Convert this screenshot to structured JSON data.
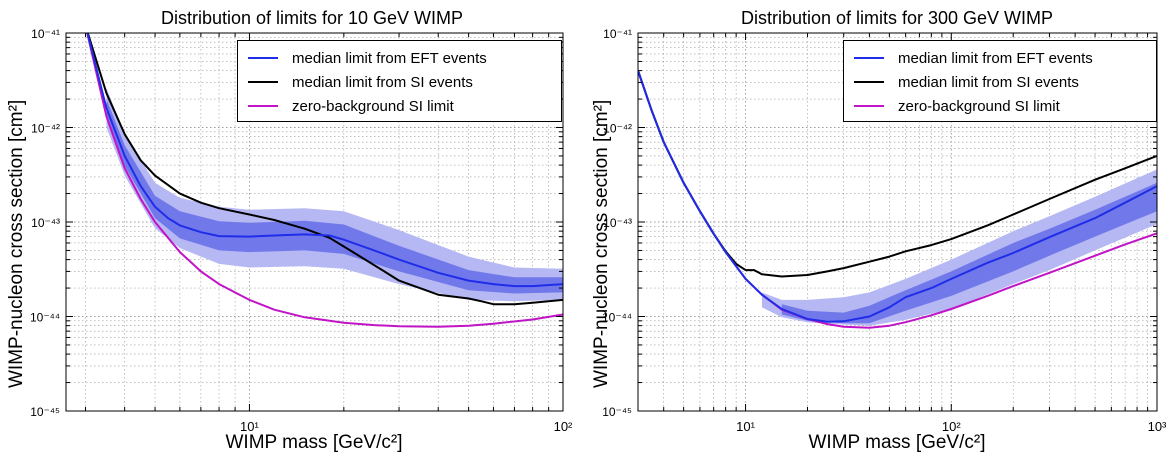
{
  "colors": {
    "eft": "#1f2de8",
    "si": "#000000",
    "zero_bg": "#c014c6",
    "band_outer": "#b6b8f3",
    "band_inner": "#7179ea",
    "grid": "#9a9a9a"
  },
  "chart_data": [
    {
      "type": "line",
      "title": "Distribution of limits for 10 GeV WIMP",
      "xlabel": "WIMP mass [GeV/c²]",
      "ylabel": "WIMP-nucleon cross section [cm²]",
      "xscale": "log",
      "yscale": "log",
      "xlim": [
        2.6,
        100
      ],
      "ylim": [
        1e-45,
        1e-41
      ],
      "xticks": [
        {
          "value": 10,
          "label": "10¹"
        },
        {
          "value": 100,
          "label": "10²"
        }
      ],
      "yticks": [
        {
          "value": 1e-45,
          "label": "10⁻⁴⁵"
        },
        {
          "value": 1e-44,
          "label": "10⁻⁴⁴"
        },
        {
          "value": 1e-43,
          "label": "10⁻⁴³"
        },
        {
          "value": 1e-42,
          "label": "10⁻⁴²"
        },
        {
          "value": 1e-41,
          "label": "10⁻⁴¹"
        }
      ],
      "grid": true,
      "legend_position": "top-right",
      "series": [
        {
          "name": "median limit from EFT events",
          "color_key": "eft",
          "x": [
            3.0,
            3.5,
            4.0,
            4.5,
            5.0,
            5.5,
            6.0,
            7.0,
            8.0,
            10,
            12,
            15,
            18,
            20,
            25,
            30,
            40,
            50,
            60,
            70,
            80,
            100
          ],
          "y": [
            1.2e-41,
            1.6e-42,
            5e-43,
            2.4e-43,
            1.45e-43,
            1.1e-43,
            9.2e-44,
            7.8e-44,
            7.1e-44,
            7e-44,
            7.2e-44,
            7.4e-44,
            7.2e-44,
            6.5e-44,
            5e-44,
            4e-44,
            2.9e-44,
            2.4e-44,
            2.2e-44,
            2.1e-44,
            2.1e-44,
            2.2e-44
          ]
        },
        {
          "name": "median limit from SI events",
          "color_key": "si",
          "x": [
            3.0,
            3.5,
            4.0,
            4.5,
            5.0,
            6.0,
            7.0,
            8.0,
            10,
            12,
            15,
            18,
            20,
            25,
            30,
            40,
            50,
            55,
            60,
            70,
            80,
            100
          ],
          "y": [
            1.2e-41,
            2.3e-42,
            8.5e-43,
            4.5e-43,
            3.1e-43,
            2e-43,
            1.6e-43,
            1.4e-43,
            1.2e-43,
            1.05e-43,
            8.5e-44,
            6.8e-44,
            5.5e-44,
            3.5e-44,
            2.4e-44,
            1.7e-44,
            1.55e-44,
            1.45e-44,
            1.35e-44,
            1.35e-44,
            1.4e-44,
            1.5e-44
          ]
        },
        {
          "name": "zero-background SI limit",
          "color_key": "zero_bg",
          "x": [
            3.0,
            3.5,
            4.0,
            4.5,
            5.0,
            6.0,
            7.0,
            8.0,
            10,
            12,
            15,
            20,
            25,
            30,
            40,
            50,
            60,
            80,
            100
          ],
          "y": [
            1.2e-41,
            1.3e-42,
            3.7e-43,
            1.75e-43,
            1e-43,
            4.8e-44,
            3e-44,
            2.2e-44,
            1.5e-44,
            1.18e-44,
            9.8e-45,
            8.6e-45,
            8.1e-45,
            7.9e-45,
            7.8e-45,
            8e-45,
            8.4e-45,
            9.3e-45,
            1.05e-44
          ]
        }
      ],
      "bands": [
        {
          "level": "outer",
          "color_key": "band_outer",
          "x": [
            3.5,
            4.0,
            5.0,
            6.0,
            8.0,
            10,
            15,
            20,
            30,
            50,
            70,
            100
          ],
          "low": [
            1e-42,
            3.1e-43,
            8.6e-44,
            5.3e-44,
            3.6e-44,
            3.3e-44,
            3.4e-44,
            3.2e-44,
            2.2e-44,
            1.5e-44,
            1.45e-44,
            1.5e-44
          ],
          "high": [
            2.6e-42,
            8.5e-43,
            2.6e-43,
            1.8e-43,
            1.45e-43,
            1.35e-43,
            1.4e-43,
            1.3e-43,
            8.2e-44,
            4.3e-44,
            3.3e-44,
            3.2e-44
          ]
        },
        {
          "level": "inner",
          "color_key": "band_inner",
          "x": [
            3.5,
            4.0,
            5.0,
            6.0,
            8.0,
            10,
            15,
            20,
            30,
            50,
            70,
            100
          ],
          "low": [
            1.3e-42,
            3.9e-43,
            1.1e-43,
            6.7e-44,
            5e-44,
            4.8e-44,
            5e-44,
            4.6e-44,
            3e-44,
            1.9e-44,
            1.75e-44,
            1.8e-44
          ],
          "high": [
            2e-42,
            6.5e-43,
            1.9e-43,
            1.3e-43,
            1.02e-43,
            9.8e-44,
            1.03e-43,
            9.4e-44,
            5.6e-44,
            3.1e-44,
            2.6e-44,
            2.6e-44
          ]
        }
      ]
    },
    {
      "type": "line",
      "title": "Distribution of limits for 300 GeV WIMP",
      "xlabel": "WIMP mass [GeV/c²]",
      "ylabel": "WIMP-nucleon cross section [cm²]",
      "xscale": "log",
      "yscale": "log",
      "xlim": [
        3,
        1000
      ],
      "ylim": [
        1e-45,
        1e-41
      ],
      "xticks": [
        {
          "value": 10,
          "label": "10¹"
        },
        {
          "value": 100,
          "label": "10²"
        },
        {
          "value": 1000,
          "label": "10³"
        }
      ],
      "yticks": [
        {
          "value": 1e-45,
          "label": "10⁻⁴⁵"
        },
        {
          "value": 1e-44,
          "label": "10⁻⁴⁴"
        },
        {
          "value": 1e-43,
          "label": "10⁻⁴³"
        },
        {
          "value": 1e-42,
          "label": "10⁻⁴²"
        },
        {
          "value": 1e-41,
          "label": "10⁻⁴¹"
        }
      ],
      "grid": true,
      "legend_position": "top-right",
      "series": [
        {
          "name": "median limit from EFT events",
          "color_key": "eft",
          "x": [
            3,
            3.5,
            4,
            5,
            6,
            7,
            8,
            10,
            12,
            15,
            20,
            25,
            30,
            40,
            50,
            60,
            80,
            100,
            150,
            200,
            300,
            500,
            700,
            1000
          ],
          "y": [
            4e-42,
            1.5e-42,
            7e-43,
            2.6e-43,
            1.3e-43,
            7.5e-44,
            4.8e-44,
            2.5e-44,
            1.7e-44,
            1.2e-44,
            9.4e-45,
            8.8e-45,
            8.9e-45,
            1e-44,
            1.25e-44,
            1.6e-44,
            2e-44,
            2.5e-44,
            3.7e-44,
            4.7e-44,
            6.9e-44,
            1.1e-43,
            1.6e-43,
            2.4e-43
          ]
        },
        {
          "name": "median limit from SI events",
          "color_key": "si",
          "x": [
            3,
            3.5,
            4,
            5,
            6,
            7,
            8,
            9,
            10,
            11,
            12,
            15,
            20,
            25,
            30,
            40,
            50,
            60,
            80,
            100,
            150,
            200,
            300,
            500,
            700,
            1000
          ],
          "y": [
            4e-42,
            1.5e-42,
            7e-43,
            2.6e-43,
            1.3e-43,
            7.5e-44,
            4.9e-44,
            3.6e-44,
            3.1e-44,
            3.1e-44,
            2.8e-44,
            2.65e-44,
            2.75e-44,
            3e-44,
            3.25e-44,
            3.8e-44,
            4.3e-44,
            4.9e-44,
            5.7e-44,
            6.6e-44,
            9.2e-44,
            1.2e-43,
            1.75e-43,
            2.8e-43,
            3.7e-43,
            5e-43
          ]
        },
        {
          "name": "zero-background SI limit",
          "color_key": "zero_bg",
          "x": [
            3,
            3.5,
            4,
            5,
            6,
            7,
            8,
            10,
            12,
            15,
            20,
            25,
            30,
            40,
            50,
            60,
            80,
            100,
            150,
            200,
            300,
            500,
            700,
            1000
          ],
          "y": [
            4e-42,
            1.5e-42,
            7e-43,
            2.6e-43,
            1.3e-43,
            7.5e-44,
            4.8e-44,
            2.5e-44,
            1.7e-44,
            1.18e-44,
            9.4e-45,
            8.3e-45,
            7.8e-45,
            7.6e-45,
            8e-45,
            8.7e-45,
            1.03e-44,
            1.2e-44,
            1.65e-44,
            2.1e-44,
            2.9e-44,
            4.4e-44,
            5.8e-44,
            7.6e-44
          ]
        }
      ],
      "bands": [
        {
          "level": "outer",
          "color_key": "band_outer",
          "x": [
            12,
            15,
            20,
            30,
            40,
            60,
            100,
            200,
            300,
            500,
            1000
          ],
          "low": [
            1.25e-44,
            9.8e-45,
            8.7e-45,
            8.2e-45,
            8e-45,
            9.2e-45,
            1.2e-44,
            2.2e-44,
            3.1e-44,
            5e-44,
            9.5e-44
          ],
          "high": [
            1.8e-44,
            1.5e-44,
            1.5e-44,
            1.6e-44,
            1.8e-44,
            2.5e-44,
            4e-44,
            8e-44,
            1.15e-43,
            1.85e-43,
            3.6e-43
          ]
        },
        {
          "level": "inner",
          "color_key": "band_inner",
          "x": [
            15,
            20,
            30,
            40,
            60,
            100,
            200,
            300,
            500,
            1000
          ],
          "low": [
            1.05e-44,
            9e-45,
            8.5e-45,
            8.5e-45,
            1.15e-44,
            1.65e-44,
            3e-44,
            4.4e-44,
            7e-44,
            1.3e-43
          ],
          "high": [
            1.35e-44,
            1.15e-44,
            1.1e-44,
            1.3e-44,
            1.9e-44,
            3e-44,
            6e-44,
            8.5e-44,
            1.35e-43,
            2.6e-43
          ]
        }
      ]
    }
  ]
}
